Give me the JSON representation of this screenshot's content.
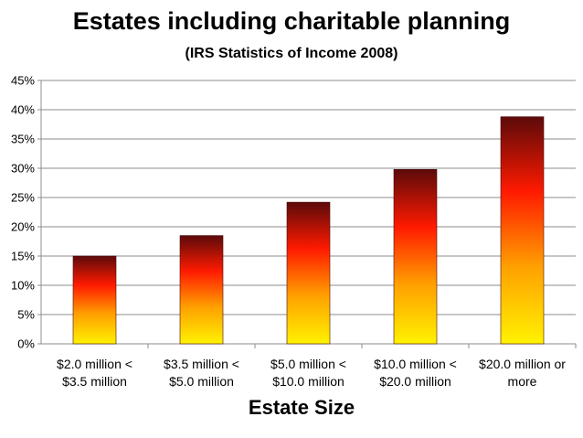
{
  "chart_data": {
    "type": "bar",
    "title": "Estates including charitable planning",
    "subtitle": "(IRS Statistics of Income 2008)",
    "xlabel": "Estate Size",
    "ylabel": "",
    "categories": [
      [
        "$2.0 million <",
        "$3.5 million"
      ],
      [
        "$3.5 million <",
        "$5.0 million"
      ],
      [
        "$5.0 million <",
        "$10.0 million"
      ],
      [
        "$10.0 million <",
        "$20.0 million"
      ],
      [
        "$20.0 million or",
        "more"
      ]
    ],
    "values": [
      15.0,
      18.5,
      24.2,
      29.8,
      38.8
    ],
    "ylim": [
      0,
      45
    ],
    "yticks": [
      "0%",
      "5%",
      "10%",
      "15%",
      "20%",
      "25%",
      "30%",
      "35%",
      "40%",
      "45%"
    ],
    "grid": true,
    "legend": "none",
    "bar_gradient": [
      "#5c0a0a",
      "#ff1a00",
      "#ffa000",
      "#fff200"
    ]
  }
}
